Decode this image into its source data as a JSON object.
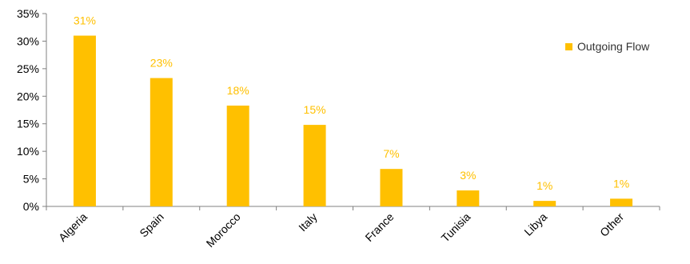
{
  "chart_data": {
    "type": "bar",
    "categories": [
      "Algeria",
      "Spain",
      "Morocco",
      "Italy",
      "France",
      "Tunisia",
      "Libya",
      "Other"
    ],
    "series": [
      {
        "name": "Outgoing Flow",
        "values": [
          31,
          23.3,
          18.3,
          14.8,
          6.8,
          2.9,
          1.0,
          1.4
        ],
        "data_labels": [
          "31%",
          "23%",
          "18%",
          "15%",
          "7%",
          "3%",
          "1%",
          "1%"
        ]
      }
    ],
    "y_ticks": [
      "0%",
      "5%",
      "10%",
      "15%",
      "20%",
      "25%",
      "30%",
      "35%"
    ],
    "ylim": [
      0,
      35
    ],
    "grid": false,
    "legend_position": "right",
    "colors": {
      "bar": "#FFC000",
      "data_label": "#FFC000",
      "axis": "#808080"
    }
  }
}
